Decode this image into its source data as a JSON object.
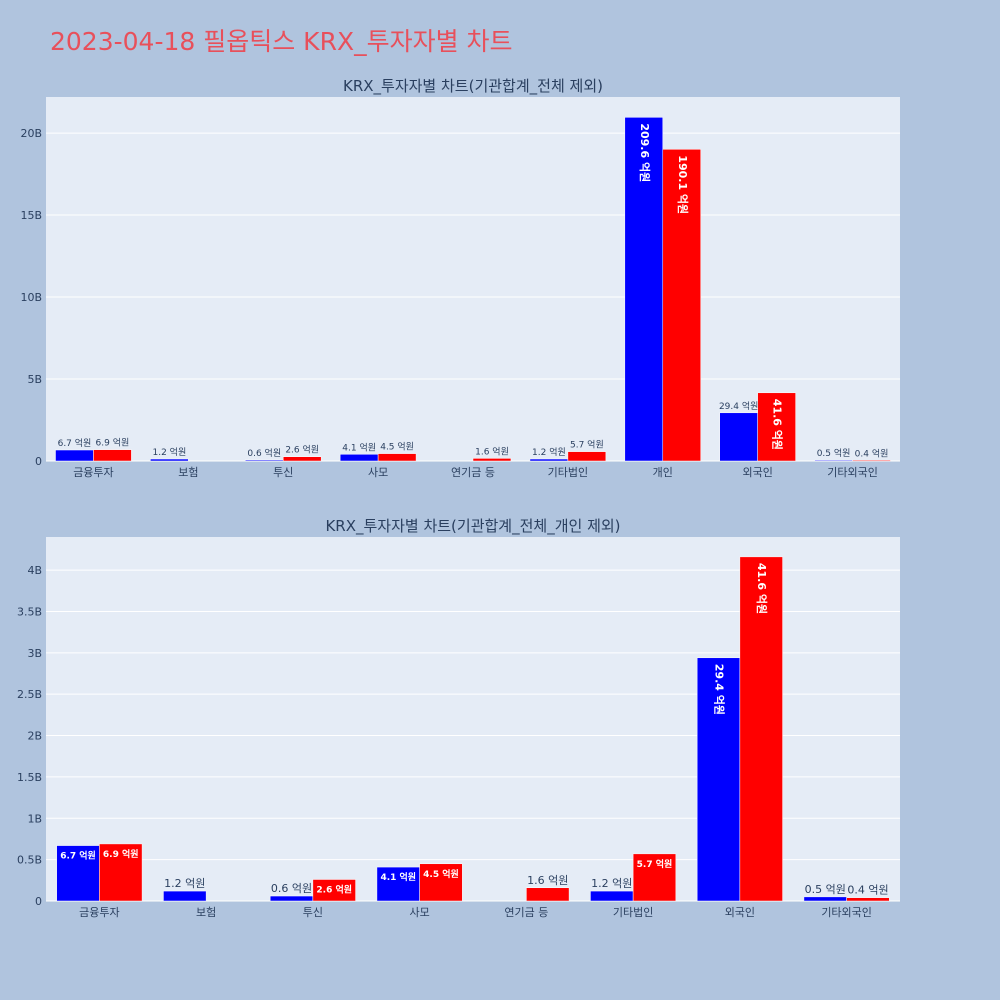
{
  "page": {
    "title": "2023-04-18 필옵틱스 KRX_투자자별 차트"
  },
  "colors": {
    "buy": "#0000ff",
    "sell": "#ff0000",
    "plot_bg": "#e5ecf6",
    "page_bg": "#b0c4de",
    "title": "#e8505b"
  },
  "chart_data": [
    {
      "type": "bar",
      "title": "KRX_투자자별 차트(기관합계_전체 제외)",
      "categories": [
        "금융투자",
        "보험",
        "투신",
        "사모",
        "연기금 등",
        "기타법인",
        "개인",
        "외국인",
        "기타외국인"
      ],
      "series": [
        {
          "values": [
            0.67,
            0.12,
            0.06,
            0.41,
            0,
            0.12,
            20.96,
            2.94,
            0.05
          ],
          "labels": [
            "6.7 억원",
            "1.2 억원",
            "0.6 억원",
            "4.1 억원",
            "",
            "1.2 억원",
            "209.6 억원",
            "29.4 억원",
            "0.5 억원"
          ]
        },
        {
          "values": [
            0.69,
            0,
            0.26,
            0.45,
            0.16,
            0.57,
            19.01,
            4.16,
            0.04
          ],
          "labels": [
            "6.9 억원",
            "",
            "2.6 억원",
            "4.5 억원",
            "1.6 억원",
            "5.7 억원",
            "190.1 억원",
            "41.6 억원",
            "0.4 억원"
          ]
        }
      ],
      "ylim": [
        0,
        22.2
      ],
      "yticks": [
        0,
        5,
        10,
        15,
        20
      ],
      "ytick_labels": [
        "0",
        "5B",
        "10B",
        "15B",
        "20B"
      ]
    },
    {
      "type": "bar",
      "title": "KRX_투자자별 차트(기관합계_전체_개인 제외)",
      "categories": [
        "금융투자",
        "보험",
        "투신",
        "사모",
        "연기금 등",
        "기타법인",
        "외국인",
        "기타외국인"
      ],
      "series": [
        {
          "values": [
            0.67,
            0.12,
            0.06,
            0.41,
            0,
            0.12,
            2.94,
            0.05
          ],
          "labels": [
            "6.7 억원",
            "1.2 억원",
            "0.6 억원",
            "4.1 억원",
            "",
            "1.2 억원",
            "29.4 억원",
            "0.5 억원"
          ]
        },
        {
          "values": [
            0.69,
            0,
            0.26,
            0.45,
            0.16,
            0.57,
            4.16,
            0.04
          ],
          "labels": [
            "6.9 억원",
            "",
            "2.6 억원",
            "4.5 억원",
            "1.6 억원",
            "5.7 억원",
            "41.6 억원",
            "0.4 억원"
          ]
        }
      ],
      "ylim": [
        0,
        4.4
      ],
      "yticks": [
        0,
        0.5,
        1,
        1.5,
        2,
        2.5,
        3,
        3.5,
        4
      ],
      "ytick_labels": [
        "0",
        "0.5B",
        "1B",
        "1.5B",
        "2B",
        "2.5B",
        "3B",
        "3.5B",
        "4B"
      ]
    }
  ]
}
